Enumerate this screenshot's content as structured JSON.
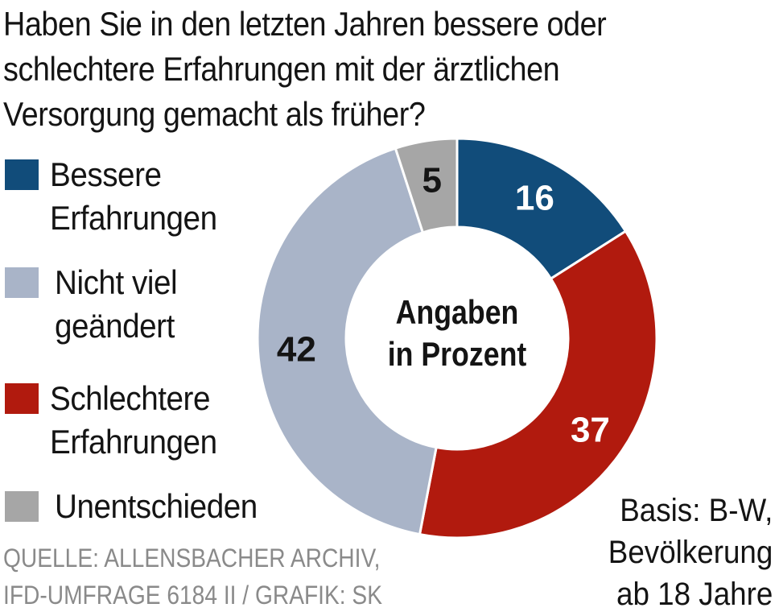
{
  "title_lines": [
    "Haben Sie in den letzten Jahren bessere oder",
    "schlechtere Erfahrungen mit der ärztlichen",
    "Versorgung gemacht als früher?"
  ],
  "legend": [
    {
      "lines": [
        "Bessere",
        "Erfahrungen"
      ],
      "color": "#114c7a"
    },
    {
      "lines": [
        "Nicht viel",
        "geändert"
      ],
      "color": "#a9b4c8"
    },
    {
      "lines": [
        "Schlechtere",
        "Erfahrungen"
      ],
      "color": "#b11a0e"
    },
    {
      "lines": [
        "Unentschieden"
      ],
      "color": "#a6a6a6"
    }
  ],
  "center_label_lines": [
    "Angaben",
    "in Prozent"
  ],
  "source_lines": [
    "QUELLE: ALLENSBACHER ARCHIV,",
    "IFD-UMFRAGE 6184 II / GRAFIK: SK"
  ],
  "basis_lines": [
    "Basis: B-W,",
    "Bevölkerung",
    "ab 18 Jahre"
  ],
  "chart_data": {
    "type": "pie",
    "donut": true,
    "start": "top, clockwise",
    "unit": "Prozent",
    "slices": [
      {
        "name": "Bessere Erfahrungen",
        "value": 16,
        "label": "16",
        "color": "#114c7a",
        "label_color": "#ffffff"
      },
      {
        "name": "Schlechtere Erfahrungen",
        "value": 37,
        "label": "37",
        "color": "#b11a0e",
        "label_color": "#ffffff"
      },
      {
        "name": "Nicht viel geändert",
        "value": 42,
        "label": "42",
        "color": "#a9b4c8",
        "label_color": "#141414"
      },
      {
        "name": "Unentschieden",
        "value": 5,
        "label": "5",
        "color": "#a6a6a6",
        "label_color": "#141414"
      }
    ]
  }
}
